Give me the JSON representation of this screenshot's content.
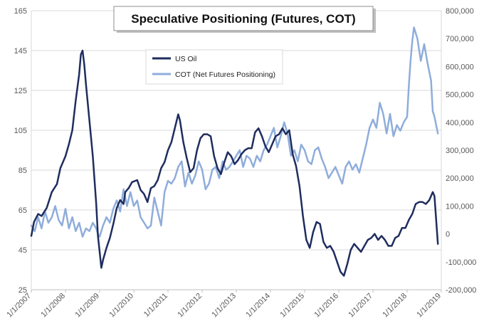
{
  "chart_data": {
    "type": "line",
    "title": "Speculative Positioning (Futures, COT)",
    "xlabel": "",
    "ylabel": "",
    "x_ticks": [
      "1/1/2007",
      "1/1/2008",
      "1/1/2009",
      "1/1/2010",
      "1/1/2011",
      "1/1/2012",
      "1/1/2013",
      "1/1/2014",
      "1/1/2015",
      "1/1/2016",
      "1/1/2017",
      "1/1/2018",
      "1/1/2019"
    ],
    "xlim": [
      2007.0,
      2019.0
    ],
    "y_left_ticks": [
      "165",
      "145",
      "125",
      "105",
      "85",
      "65",
      "45",
      "25"
    ],
    "ylim_left": [
      25,
      165
    ],
    "y_right_ticks": [
      "800,000",
      "700,000",
      "600,000",
      "500,000",
      "400,000",
      "300,000",
      "200,000",
      "100,000",
      "0",
      "-100,000",
      "-200,000"
    ],
    "ylim_right": [
      -200000,
      800000
    ],
    "grid": true,
    "legend_position": "top-center",
    "series": [
      {
        "name": "US Oil",
        "axis": "left",
        "color": "#1f2d5e",
        "x": [
          2007.0,
          2007.08,
          2007.2,
          2007.3,
          2007.45,
          2007.6,
          2007.75,
          2007.85,
          2008.0,
          2008.1,
          2008.2,
          2008.3,
          2008.4,
          2008.45,
          2008.5,
          2008.55,
          2008.6,
          2008.7,
          2008.8,
          2008.9,
          2008.95,
          2009.0,
          2009.05,
          2009.1,
          2009.2,
          2009.3,
          2009.4,
          2009.5,
          2009.6,
          2009.7,
          2009.75,
          2009.85,
          2009.95,
          2010.1,
          2010.2,
          2010.3,
          2010.4,
          2010.5,
          2010.6,
          2010.7,
          2010.8,
          2010.9,
          2011.0,
          2011.1,
          2011.2,
          2011.3,
          2011.35,
          2011.45,
          2011.55,
          2011.65,
          2011.75,
          2011.85,
          2011.95,
          2012.05,
          2012.15,
          2012.25,
          2012.35,
          2012.45,
          2012.55,
          2012.65,
          2012.75,
          2012.85,
          2012.95,
          2013.05,
          2013.15,
          2013.25,
          2013.35,
          2013.45,
          2013.55,
          2013.65,
          2013.75,
          2013.85,
          2013.95,
          2014.05,
          2014.15,
          2014.25,
          2014.35,
          2014.45,
          2014.55,
          2014.65,
          2014.75,
          2014.85,
          2014.95,
          2015.05,
          2015.15,
          2015.25,
          2015.35,
          2015.45,
          2015.55,
          2015.65,
          2015.75,
          2015.85,
          2015.95,
          2016.05,
          2016.15,
          2016.25,
          2016.35,
          2016.45,
          2016.55,
          2016.65,
          2016.75,
          2016.85,
          2016.95,
          2017.05,
          2017.15,
          2017.25,
          2017.35,
          2017.45,
          2017.55,
          2017.65,
          2017.75,
          2017.85,
          2017.95,
          2018.05,
          2018.15,
          2018.25,
          2018.35,
          2018.45,
          2018.55,
          2018.65,
          2018.75,
          2018.8,
          2018.85,
          2018.9
        ],
        "y": [
          52,
          59,
          63,
          62,
          66,
          74,
          78,
          86,
          92,
          98,
          105,
          120,
          133,
          143,
          145,
          138,
          128,
          110,
          92,
          68,
          52,
          44,
          36,
          40,
          46,
          51,
          58,
          66,
          70,
          68,
          74,
          76,
          79,
          80,
          75,
          73,
          69,
          76,
          77,
          80,
          86,
          89,
          95,
          99,
          106,
          113,
          110,
          99,
          91,
          84,
          86,
          95,
          101,
          103,
          103,
          102,
          92,
          86,
          83,
          89,
          94,
          92,
          88,
          90,
          93,
          95,
          96,
          96,
          104,
          106,
          102,
          97,
          94,
          98,
          102,
          103,
          106,
          103,
          105,
          93,
          87,
          77,
          62,
          50,
          46,
          54,
          59,
          58,
          49,
          46,
          47,
          44,
          39,
          34,
          32,
          38,
          45,
          48,
          46,
          44,
          47,
          50,
          51,
          53,
          50,
          52,
          50,
          47,
          47,
          51,
          52,
          56,
          56,
          60,
          63,
          68,
          69,
          69,
          68,
          70,
          74,
          72,
          60,
          48
        ]
      },
      {
        "name": "COT (Net Futures Positioning)",
        "axis": "right",
        "color": "#8faddb",
        "x": [
          2007.0,
          2007.1,
          2007.2,
          2007.3,
          2007.4,
          2007.5,
          2007.6,
          2007.7,
          2007.8,
          2007.9,
          2008.0,
          2008.1,
          2008.2,
          2008.3,
          2008.4,
          2008.5,
          2008.6,
          2008.7,
          2008.8,
          2008.9,
          2008.95,
          2009.0,
          2009.1,
          2009.2,
          2009.3,
          2009.4,
          2009.5,
          2009.6,
          2009.7,
          2009.8,
          2009.9,
          2010.0,
          2010.1,
          2010.2,
          2010.3,
          2010.4,
          2010.5,
          2010.6,
          2010.7,
          2010.8,
          2010.9,
          2011.0,
          2011.1,
          2011.2,
          2011.3,
          2011.4,
          2011.5,
          2011.6,
          2011.7,
          2011.8,
          2011.9,
          2012.0,
          2012.1,
          2012.2,
          2012.3,
          2012.4,
          2012.5,
          2012.6,
          2012.7,
          2012.8,
          2012.9,
          2013.0,
          2013.1,
          2013.2,
          2013.3,
          2013.4,
          2013.5,
          2013.6,
          2013.7,
          2013.8,
          2013.9,
          2014.0,
          2014.1,
          2014.2,
          2014.3,
          2014.4,
          2014.5,
          2014.6,
          2014.7,
          2014.8,
          2014.9,
          2015.0,
          2015.1,
          2015.2,
          2015.3,
          2015.4,
          2015.5,
          2015.6,
          2015.7,
          2015.8,
          2015.9,
          2016.0,
          2016.1,
          2016.2,
          2016.3,
          2016.4,
          2016.5,
          2016.6,
          2016.7,
          2016.8,
          2016.9,
          2017.0,
          2017.1,
          2017.2,
          2017.3,
          2017.4,
          2017.5,
          2017.6,
          2017.7,
          2017.8,
          2017.9,
          2018.0,
          2018.05,
          2018.1,
          2018.15,
          2018.2,
          2018.3,
          2018.4,
          2018.5,
          2018.6,
          2018.7,
          2018.75,
          2018.8,
          2018.85,
          2018.9
        ],
        "y": [
          30000,
          10000,
          60000,
          20000,
          80000,
          40000,
          60000,
          100000,
          50000,
          30000,
          90000,
          20000,
          60000,
          10000,
          40000,
          -10000,
          20000,
          10000,
          40000,
          20000,
          0,
          -10000,
          30000,
          60000,
          40000,
          90000,
          120000,
          80000,
          160000,
          100000,
          150000,
          100000,
          120000,
          60000,
          40000,
          20000,
          30000,
          130000,
          80000,
          30000,
          150000,
          190000,
          180000,
          200000,
          240000,
          260000,
          170000,
          220000,
          180000,
          210000,
          260000,
          230000,
          160000,
          180000,
          230000,
          240000,
          200000,
          260000,
          230000,
          240000,
          260000,
          280000,
          300000,
          240000,
          280000,
          270000,
          240000,
          280000,
          260000,
          300000,
          320000,
          350000,
          380000,
          310000,
          350000,
          400000,
          360000,
          280000,
          300000,
          260000,
          320000,
          300000,
          260000,
          250000,
          300000,
          310000,
          270000,
          240000,
          200000,
          220000,
          240000,
          210000,
          180000,
          240000,
          260000,
          230000,
          250000,
          220000,
          270000,
          320000,
          380000,
          410000,
          380000,
          470000,
          430000,
          360000,
          430000,
          350000,
          390000,
          370000,
          400000,
          420000,
          530000,
          620000,
          690000,
          740000,
          700000,
          620000,
          680000,
          610000,
          550000,
          440000,
          420000,
          390000,
          360000
        ]
      }
    ]
  }
}
